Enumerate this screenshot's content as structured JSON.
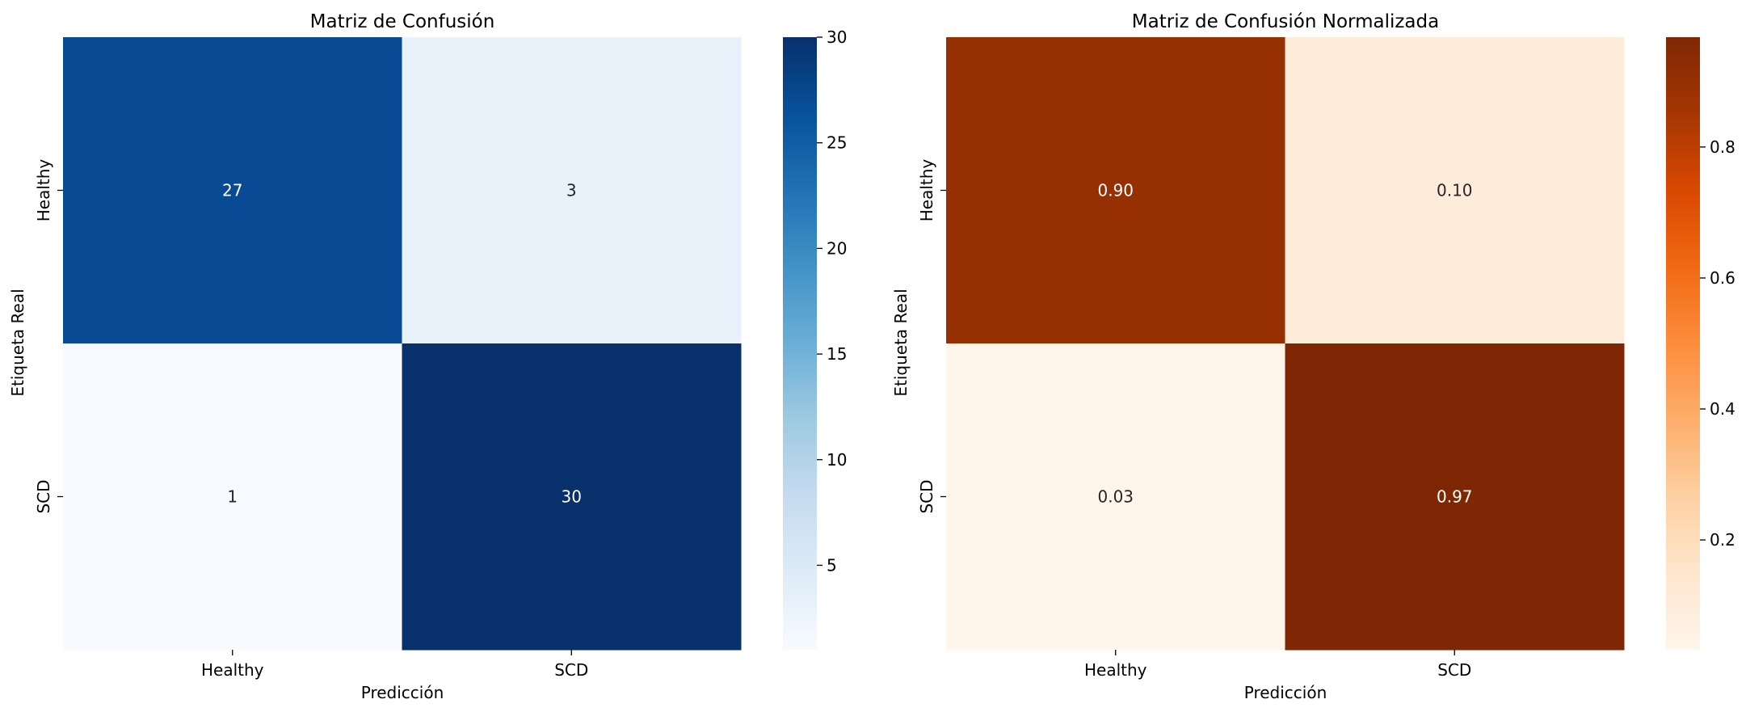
{
  "chart_data": [
    {
      "type": "heatmap",
      "title": "Matriz de Confusión",
      "xlabel": "Predicción",
      "ylabel": "Etiqueta Real",
      "x_categories": [
        "Healthy",
        "SCD"
      ],
      "y_categories": [
        "Healthy",
        "SCD"
      ],
      "values": [
        [
          27,
          3
        ],
        [
          1,
          30
        ]
      ],
      "cell_labels": [
        [
          "27",
          "3"
        ],
        [
          "1",
          "30"
        ]
      ],
      "colormap": "Blues",
      "colormap_stops": [
        "#f7fbff",
        "#deebf7",
        "#c6dbef",
        "#9ecae1",
        "#6baed6",
        "#4292c6",
        "#2171b5",
        "#08519c",
        "#08306b"
      ],
      "vmin": 1,
      "vmax": 30,
      "colorbar_ticks": [
        5,
        10,
        15,
        20,
        25,
        30
      ],
      "colorbar_tick_labels": [
        "5",
        "10",
        "15",
        "20",
        "25",
        "30"
      ]
    },
    {
      "type": "heatmap",
      "title": "Matriz de Confusión Normalizada",
      "xlabel": "Predicción",
      "ylabel": "Etiqueta Real",
      "x_categories": [
        "Healthy",
        "SCD"
      ],
      "y_categories": [
        "Healthy",
        "SCD"
      ],
      "values": [
        [
          0.9,
          0.1
        ],
        [
          0.0323,
          0.9677
        ]
      ],
      "cell_labels": [
        [
          "0.90",
          "0.10"
        ],
        [
          "0.03",
          "0.97"
        ]
      ],
      "colormap": "Oranges",
      "colormap_stops": [
        "#fff5eb",
        "#fee6ce",
        "#fdd0a2",
        "#fdae6b",
        "#fd8d3c",
        "#f16913",
        "#d94801",
        "#a63603",
        "#7f2704"
      ],
      "vmin": 0.0323,
      "vmax": 0.9677,
      "colorbar_ticks": [
        0.2,
        0.4,
        0.6,
        0.8
      ],
      "colorbar_tick_labels": [
        "0.2",
        "0.4",
        "0.6",
        "0.8"
      ]
    }
  ]
}
